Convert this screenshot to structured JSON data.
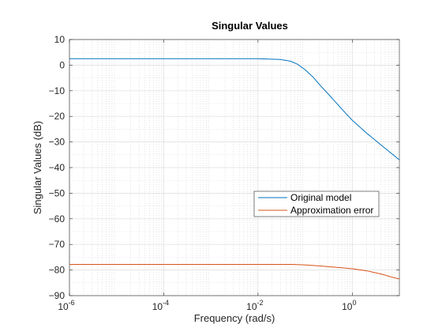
{
  "chart_data": {
    "type": "line",
    "title": "Singular Values",
    "xlabel": "Frequency (rad/s)",
    "ylabel": "Singular Values (dB)",
    "xscale": "log",
    "xlim": [
      1e-06,
      10
    ],
    "ylim": [
      -90,
      10
    ],
    "x_ticks": [
      {
        "base": "10",
        "exp": "-6",
        "value": 1e-06
      },
      {
        "base": "10",
        "exp": "-4",
        "value": 0.0001
      },
      {
        "base": "10",
        "exp": "-2",
        "value": 0.01
      },
      {
        "base": "10",
        "exp": "0",
        "value": 1
      }
    ],
    "y_ticks": [
      10,
      0,
      -10,
      -20,
      -30,
      -40,
      -50,
      -60,
      -70,
      -80,
      -90
    ],
    "grid": "major and minor, dotted",
    "legend_location": "center-right",
    "series": [
      {
        "name": "Original model",
        "color": "#0072BD",
        "points": [
          [
            1e-06,
            2.5
          ],
          [
            0.0001,
            2.5
          ],
          [
            0.01,
            2.5
          ],
          [
            0.03,
            2.2
          ],
          [
            0.05,
            1.5
          ],
          [
            0.07,
            0.3
          ],
          [
            0.1,
            -1.8
          ],
          [
            0.15,
            -4.8
          ],
          [
            0.2,
            -7.5
          ],
          [
            0.3,
            -11.0
          ],
          [
            0.5,
            -15.5
          ],
          [
            0.7,
            -18.5
          ],
          [
            1,
            -21.5
          ],
          [
            2,
            -26.5
          ],
          [
            5,
            -32.5
          ],
          [
            10,
            -37.0
          ]
        ]
      },
      {
        "name": "Approximation error",
        "color": "#D95319",
        "points": [
          [
            1e-06,
            -77.8
          ],
          [
            0.0001,
            -77.8
          ],
          [
            0.01,
            -77.8
          ],
          [
            0.05,
            -77.8
          ],
          [
            0.1,
            -78.0
          ],
          [
            0.2,
            -78.4
          ],
          [
            0.5,
            -79.0
          ],
          [
            1,
            -79.5
          ],
          [
            2,
            -80.3
          ],
          [
            4,
            -81.5
          ],
          [
            7,
            -82.8
          ],
          [
            10,
            -83.5
          ]
        ]
      }
    ]
  }
}
